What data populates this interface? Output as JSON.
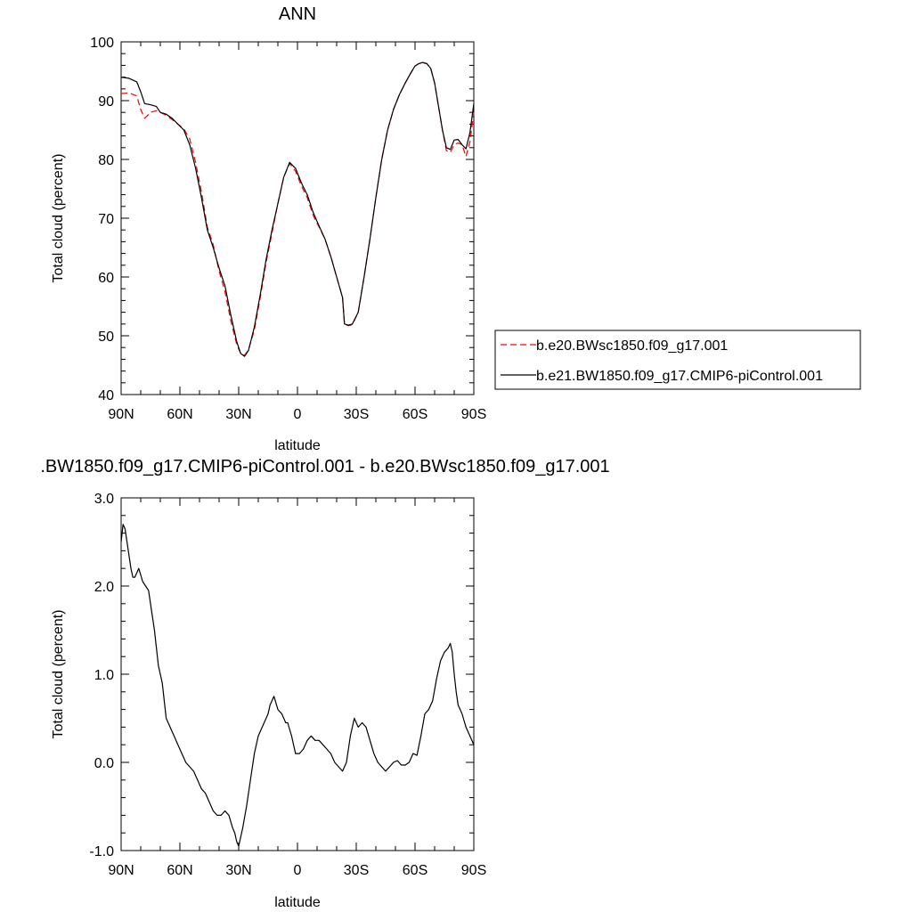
{
  "chart_data": [
    {
      "type": "line",
      "title": "ANN",
      "xlabel": "latitude",
      "ylabel": "Total cloud (percent)",
      "ylim": [
        40,
        100
      ],
      "xlim": [
        90,
        -90
      ],
      "xticks": [
        90,
        60,
        30,
        0,
        -30,
        -60,
        -90
      ],
      "xtick_labels": [
        "90N",
        "60N",
        "30N",
        "0",
        "30S",
        "60S",
        "90S"
      ],
      "yticks": [
        40,
        50,
        60,
        70,
        80,
        90,
        100
      ],
      "ytick_labels": [
        "40",
        "50",
        "60",
        "70",
        "80",
        "90",
        "100"
      ],
      "grid": false,
      "legend_position": "right",
      "series": [
        {
          "name": "b.e20.BWsc1850.f09_g17.001",
          "color": "#ff0000",
          "dash": "dashed",
          "x": [
            90,
            86,
            82,
            80,
            78,
            75,
            72,
            70,
            67,
            64,
            61,
            58,
            55,
            52,
            49,
            46,
            43,
            40,
            37,
            34,
            31,
            29,
            27,
            25,
            22,
            19,
            16,
            13,
            10,
            7,
            4,
            1,
            -2,
            -5,
            -8,
            -11,
            -14,
            -17,
            -20,
            -23,
            -24,
            -26,
            -28,
            -31,
            -34,
            -37,
            -40,
            -43,
            -46,
            -49,
            -52,
            -55,
            -58,
            -60,
            -62,
            -64,
            -66,
            -68,
            -70,
            -72,
            -74,
            -76,
            -78,
            -80,
            -82,
            -84,
            -86,
            -88,
            -90
          ],
          "y": [
            91.2,
            91.3,
            90.8,
            88.5,
            87.0,
            88.0,
            88.3,
            88.0,
            87.5,
            86.8,
            86.0,
            85.2,
            83.5,
            79.5,
            74.5,
            68.5,
            65.5,
            61.0,
            57.5,
            52.5,
            48.5,
            47.0,
            46.7,
            47.6,
            51.0,
            56.5,
            62.5,
            67.5,
            72.5,
            77.0,
            79.3,
            78.0,
            75.5,
            73.5,
            70.5,
            68.5,
            66.5,
            63.5,
            60.0,
            56.5,
            52.0,
            51.7,
            51.9,
            54.0,
            60.0,
            66.5,
            73.5,
            80.0,
            85.0,
            88.5,
            91.0,
            93.0,
            94.8,
            95.9,
            96.3,
            96.4,
            96.3,
            95.5,
            93.0,
            89.0,
            85.0,
            81.5,
            81.2,
            82.5,
            82.8,
            82.5,
            80.5,
            83.0,
            88.0
          ]
        },
        {
          "name": "b.e21.BW1850.f09_g17.CMIP6-piControl.001",
          "color": "#000000",
          "dash": "solid",
          "x": [
            90,
            86,
            82,
            80,
            78,
            75,
            72,
            70,
            67,
            64,
            61,
            58,
            55,
            52,
            49,
            46,
            43,
            40,
            37,
            34,
            31,
            29,
            27,
            25,
            22,
            19,
            16,
            13,
            10,
            7,
            4,
            1,
            -2,
            -5,
            -8,
            -11,
            -14,
            -17,
            -20,
            -23,
            -24,
            -26,
            -28,
            -31,
            -34,
            -37,
            -40,
            -43,
            -46,
            -49,
            -52,
            -55,
            -58,
            -60,
            -62,
            -64,
            -66,
            -68,
            -70,
            -72,
            -74,
            -76,
            -78,
            -80,
            -82,
            -84,
            -86,
            -88,
            -90
          ],
          "y": [
            94.0,
            93.8,
            93.2,
            91.5,
            89.5,
            89.3,
            89.0,
            88.0,
            87.7,
            87.0,
            86.0,
            85.0,
            82.5,
            78.5,
            73.5,
            68.0,
            65.0,
            61.5,
            58.5,
            53.5,
            49.0,
            47.0,
            46.5,
            47.5,
            51.5,
            57.0,
            63.0,
            68.0,
            72.5,
            77.0,
            79.5,
            78.5,
            76.0,
            74.0,
            71.0,
            68.7,
            66.5,
            63.5,
            60.0,
            56.5,
            52.0,
            51.8,
            52.0,
            54.0,
            60.0,
            66.5,
            73.5,
            80.0,
            85.0,
            88.5,
            91.0,
            93.0,
            94.8,
            95.9,
            96.3,
            96.5,
            96.3,
            95.5,
            93.0,
            89.0,
            85.0,
            82.0,
            81.7,
            83.3,
            83.4,
            82.5,
            81.8,
            84.5,
            89.5
          ]
        }
      ],
      "legend_entries": [
        "b.e20.BWsc1850.f09_g17.001",
        "b.e21.BW1850.f09_g17.CMIP6-piControl.001"
      ]
    },
    {
      "type": "line",
      "title": ".BW1850.f09_g17.CMIP6-piControl.001 - b.e20.BWsc1850.f09_g17.001",
      "xlabel": "latitude",
      "ylabel": "Total cloud (percent)",
      "ylim": [
        -1.0,
        3.0
      ],
      "xlim": [
        90,
        -90
      ],
      "xticks": [
        90,
        60,
        30,
        0,
        -30,
        -60,
        -90
      ],
      "xtick_labels": [
        "90N",
        "60N",
        "30N",
        "0",
        "30S",
        "60S",
        "90S"
      ],
      "yticks": [
        -1.0,
        0.0,
        1.0,
        2.0,
        3.0
      ],
      "ytick_labels": [
        "-1.0",
        "0.0",
        "1.0",
        "2.0",
        "3.0"
      ],
      "grid": false,
      "series": [
        {
          "color": "#000000",
          "dash": "solid",
          "x": [
            90,
            89,
            88,
            87,
            85,
            84,
            83,
            81,
            79,
            76,
            73,
            71,
            69,
            67,
            65,
            63,
            61,
            59,
            57,
            55,
            53,
            51,
            49,
            47,
            45,
            43,
            41,
            39,
            37,
            35,
            33,
            32,
            31,
            30,
            28,
            26,
            24,
            22,
            20,
            18,
            16,
            15,
            14,
            13,
            12,
            10,
            8,
            7,
            6,
            5,
            3,
            1,
            -1,
            -3,
            -5,
            -7,
            -9,
            -11,
            -13,
            -15,
            -17,
            -19,
            -21,
            -23,
            -25,
            -27,
            -29,
            -31,
            -33,
            -35,
            -37,
            -39,
            -41,
            -43,
            -45,
            -47,
            -49,
            -51,
            -53,
            -55,
            -57,
            -59,
            -61,
            -63,
            -65,
            -67,
            -69,
            -71,
            -73,
            -75,
            -77,
            -78,
            -79,
            -80,
            -81,
            -82,
            -84,
            -86,
            -87,
            -88,
            -89,
            -90
          ],
          "y": [
            2.5,
            2.7,
            2.65,
            2.5,
            2.2,
            2.1,
            2.1,
            2.2,
            2.05,
            1.95,
            1.5,
            1.1,
            0.9,
            0.5,
            0.4,
            0.3,
            0.2,
            0.1,
            0.0,
            -0.05,
            -0.1,
            -0.2,
            -0.3,
            -0.35,
            -0.45,
            -0.55,
            -0.6,
            -0.6,
            -0.55,
            -0.6,
            -0.75,
            -0.8,
            -0.9,
            -0.95,
            -0.75,
            -0.5,
            -0.2,
            0.1,
            0.3,
            0.4,
            0.5,
            0.55,
            0.65,
            0.7,
            0.75,
            0.6,
            0.55,
            0.5,
            0.45,
            0.45,
            0.3,
            0.1,
            0.1,
            0.15,
            0.25,
            0.3,
            0.25,
            0.25,
            0.2,
            0.15,
            0.1,
            0.0,
            -0.05,
            -0.1,
            0.0,
            0.3,
            0.5,
            0.4,
            0.45,
            0.4,
            0.25,
            0.1,
            0.0,
            -0.05,
            -0.1,
            -0.05,
            0.0,
            0.02,
            -0.03,
            -0.03,
            0.0,
            0.1,
            0.08,
            0.3,
            0.55,
            0.6,
            0.7,
            0.95,
            1.15,
            1.25,
            1.3,
            1.35,
            1.25,
            1.0,
            0.8,
            0.65,
            0.55,
            0.4,
            0.35,
            0.3,
            0.25,
            0.2
          ]
        }
      ]
    }
  ]
}
